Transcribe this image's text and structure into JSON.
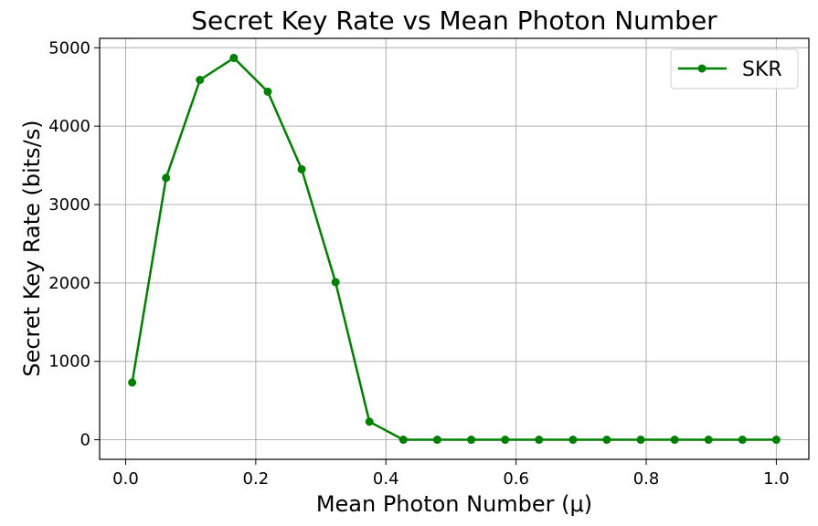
{
  "chart_data": {
    "type": "line",
    "title": "Secret Key Rate vs Mean Photon Number",
    "xlabel": "Mean Photon Number (μ)",
    "ylabel": "Secret Key Rate (bits/s)",
    "xlim": [
      -0.04,
      1.05
    ],
    "ylim": [
      -250,
      5120
    ],
    "xticks": [
      0.0,
      0.2,
      0.4,
      0.6,
      0.8,
      1.0
    ],
    "xtick_labels": [
      "0.0",
      "0.2",
      "0.4",
      "0.6",
      "0.8",
      "1.0"
    ],
    "yticks": [
      0,
      1000,
      2000,
      3000,
      4000,
      5000
    ],
    "ytick_labels": [
      "0",
      "1000",
      "2000",
      "3000",
      "4000",
      "5000"
    ],
    "grid": true,
    "legend_position": "top-right",
    "series": [
      {
        "name": "SKR",
        "color": "#008000",
        "marker": "circle",
        "x": [
          0.01,
          0.0621,
          0.1142,
          0.1663,
          0.2184,
          0.2705,
          0.3226,
          0.3747,
          0.4268,
          0.4789,
          0.5311,
          0.5832,
          0.6353,
          0.6874,
          0.7395,
          0.7916,
          0.8437,
          0.8958,
          0.9479,
          1.0
        ],
        "y": [
          730,
          3340,
          4590,
          4870,
          4440,
          3450,
          2010,
          230,
          0,
          0,
          0,
          0,
          0,
          0,
          0,
          0,
          0,
          0,
          0,
          0
        ]
      }
    ]
  }
}
